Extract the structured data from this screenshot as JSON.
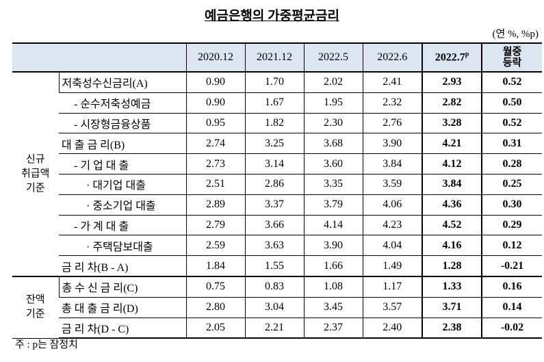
{
  "title": "예금은행의 가중평균금리",
  "unit": "(연 %, %p)",
  "table": {
    "header": [
      "2020.12",
      "2021.12",
      "2022.5",
      "2022.6",
      {
        "text": "2022.7",
        "sup": "p"
      },
      [
        "월중",
        "등락"
      ]
    ],
    "groups": [
      {
        "label": [
          "신규",
          "취급액",
          "기준"
        ],
        "rows": [
          [
            "저축성수신금리(A)",
            "0.90",
            "1.70",
            "2.02",
            "2.41",
            "2.93",
            "0.52"
          ],
          [
            "- 순수저축성예금",
            "0.90",
            "1.67",
            "1.95",
            "2.32",
            "2.82",
            "0.50"
          ],
          [
            "- 시장형금융상품",
            "0.95",
            "1.82",
            "2.30",
            "2.76",
            "3.28",
            "0.52"
          ],
          [
            "대 출 금 리(B)",
            "2.74",
            "3.25",
            "3.68",
            "3.90",
            "4.21",
            "0.31"
          ],
          [
            "- 기 업 대 출",
            "2.73",
            "3.14",
            "3.60",
            "3.84",
            "4.12",
            "0.28"
          ],
          [
            "· 대기업 대출",
            "2.51",
            "2.86",
            "3.35",
            "3.59",
            "3.84",
            "0.25"
          ],
          [
            "· 중소기업 대출",
            "2.89",
            "3.37",
            "3.79",
            "4.06",
            "4.36",
            "0.30"
          ],
          [
            "- 가 계 대 출",
            "2.79",
            "3.66",
            "4.14",
            "4.23",
            "4.52",
            "0.29"
          ],
          [
            "· 주택담보대출",
            "2.59",
            "3.63",
            "3.90",
            "4.04",
            "4.16",
            "0.12"
          ],
          [
            "금 리 차(B - A)",
            "1.84",
            "1.55",
            "1.66",
            "1.49",
            "1.28",
            "-0.21"
          ]
        ]
      },
      {
        "label": [
          "잔액",
          "기준"
        ],
        "rows": [
          [
            "총 수 신 금 리(C)",
            "0.75",
            "0.83",
            "1.08",
            "1.17",
            "1.33",
            "0.16"
          ],
          [
            "총 대 출 금 리(D)",
            "2.80",
            "3.04",
            "3.45",
            "3.57",
            "3.71",
            "0.14"
          ],
          [
            "금 리 차(D - C)",
            "2.05",
            "2.21",
            "2.37",
            "2.40",
            "2.38",
            "-0.02"
          ]
        ]
      }
    ]
  },
  "note": "주 : p는 잠정치"
}
